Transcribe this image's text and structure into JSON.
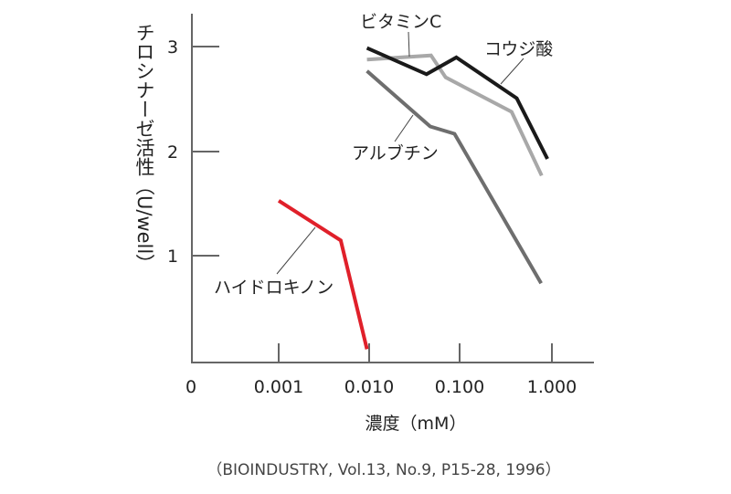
{
  "chart_data": {
    "type": "line",
    "xlabel": "濃度（mM）",
    "ylabel": "チロシナーゼ活性（U/well）",
    "x_scale": "log",
    "x_ticks": [
      "0",
      "0.001",
      "0.010",
      "0.100",
      "1.000"
    ],
    "y_ticks": [
      "1",
      "2",
      "3"
    ],
    "ylim": [
      0,
      3.3
    ],
    "grid": false,
    "caption": "（BIOINDUSTRY, Vol.13, No.9, P15-28, 1996）",
    "series": [
      {
        "name": "ハイドロキノン",
        "color": "#e0202a",
        "x": [
          0.001,
          0.0048,
          0.0093
        ],
        "y": [
          1.53,
          1.15,
          0.11
        ]
      },
      {
        "name": "アルブチン",
        "color": "#6e6e6e",
        "x": [
          0.0093,
          0.046,
          0.085,
          0.76
        ],
        "y": [
          2.77,
          2.24,
          2.17,
          0.74
        ]
      },
      {
        "name": "ビタミンC",
        "color": "#a8a8a8",
        "x": [
          0.0093,
          0.047,
          0.068,
          0.36,
          0.77
        ],
        "y": [
          2.88,
          2.92,
          2.71,
          2.38,
          1.77
        ]
      },
      {
        "name": "コウジ酸",
        "color": "#1a1a1a",
        "x": [
          0.0093,
          0.042,
          0.089,
          0.41,
          0.89
        ],
        "y": [
          2.99,
          2.74,
          2.9,
          2.51,
          1.93
        ]
      }
    ]
  }
}
